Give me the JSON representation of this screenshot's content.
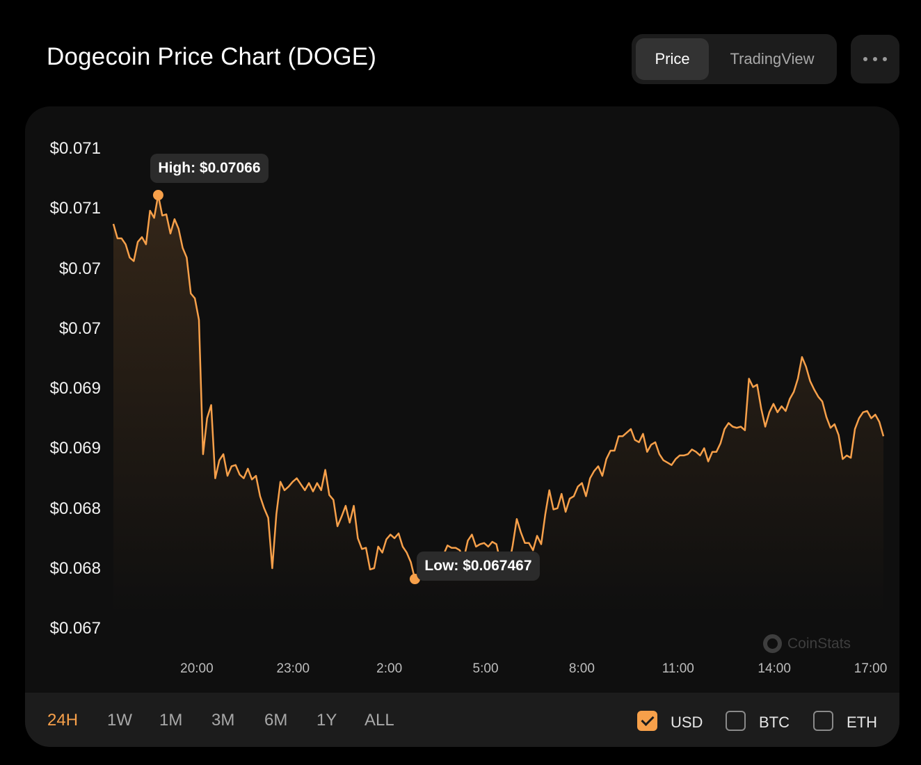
{
  "title": "Dogecoin Price Chart (DOGE)",
  "view_toggle": {
    "price": "Price",
    "tradingview": "TradingView",
    "active": "Price"
  },
  "more_icon": "ellipsis-icon",
  "accent_color": "#f7a04a",
  "watermark": "CoinStats",
  "timeframes": [
    "24H",
    "1W",
    "1M",
    "3M",
    "6M",
    "1Y",
    "ALL"
  ],
  "active_timeframe": "24H",
  "currencies": [
    {
      "label": "USD",
      "checked": true
    },
    {
      "label": "BTC",
      "checked": false
    },
    {
      "label": "ETH",
      "checked": false
    }
  ],
  "chart_data": {
    "type": "area",
    "title": "Dogecoin Price Chart (DOGE)",
    "y_tick_labels": [
      "$0.071",
      "$0.071",
      "$0.07",
      "$0.07",
      "$0.069",
      "$0.069",
      "$0.068",
      "$0.068",
      "$0.067"
    ],
    "x_tick_labels": [
      "20:00",
      "23:00",
      "2:00",
      "5:00",
      "8:00",
      "11:00",
      "14:00",
      "17:00"
    ],
    "ylim": [
      0.06704,
      0.07104
    ],
    "annotations": [
      {
        "label": "High: $0.07066",
        "value": 0.07066
      },
      {
        "label": "Low: $0.067467",
        "value": 0.067467
      }
    ],
    "series": [
      {
        "values": [
          0.07042,
          0.0703,
          0.0703,
          0.07025,
          0.07014,
          0.07011,
          0.07027,
          0.07031,
          0.07025,
          0.07053,
          0.07047,
          0.07066,
          0.07049,
          0.0705,
          0.07034,
          0.07046,
          0.07038,
          0.07022,
          0.07014,
          0.06984,
          0.0698,
          0.06962,
          0.0685,
          0.0688,
          0.06891,
          0.0683,
          0.06845,
          0.0685,
          0.06832,
          0.0684,
          0.06841,
          0.06833,
          0.0683,
          0.06838,
          0.06829,
          0.06832,
          0.06815,
          0.06805,
          0.06797,
          0.06755,
          0.068,
          0.06827,
          0.0682,
          0.06823,
          0.06827,
          0.0683,
          0.06825,
          0.0682,
          0.06826,
          0.06819,
          0.06826,
          0.0682,
          0.06837,
          0.06816,
          0.06812,
          0.0679,
          0.06798,
          0.06807,
          0.06793,
          0.06807,
          0.0678,
          0.06771,
          0.06772,
          0.06754,
          0.06755,
          0.06773,
          0.06768,
          0.06779,
          0.06783,
          0.0678,
          0.06784,
          0.06773,
          0.06768,
          0.0676,
          0.06746,
          0.06747,
          0.06758,
          0.06765,
          0.06764,
          0.06765,
          0.06767,
          0.06766,
          0.06774,
          0.06772,
          0.06772,
          0.0677,
          0.06763,
          0.06778,
          0.06783,
          0.06773,
          0.06775,
          0.06776,
          0.06773,
          0.06777,
          0.06775,
          0.0676,
          0.06763,
          0.06756,
          0.06774,
          0.06796,
          0.06785,
          0.06776,
          0.06776,
          0.0677,
          0.06782,
          0.06775,
          0.068,
          0.0682,
          0.06804,
          0.06805,
          0.06817,
          0.06802,
          0.06813,
          0.06815,
          0.06823,
          0.06826,
          0.06815,
          0.0683,
          0.06836,
          0.0684,
          0.06832,
          0.06846,
          0.06853,
          0.06853,
          0.06865,
          0.06865,
          0.06868,
          0.06871,
          0.06862,
          0.0686,
          0.06867,
          0.06852,
          0.06858,
          0.0686,
          0.0685,
          0.06845,
          0.06843,
          0.06841,
          0.06846,
          0.06849,
          0.06849,
          0.0685,
          0.06854,
          0.06852,
          0.06849,
          0.06855,
          0.06844,
          0.06852,
          0.06852,
          0.06859,
          0.06871,
          0.06876,
          0.06873,
          0.06872,
          0.06873,
          0.0687,
          0.06913,
          0.06906,
          0.06908,
          0.06888,
          0.06873,
          0.06885,
          0.06892,
          0.06885,
          0.0689,
          0.06886,
          0.06896,
          0.06902,
          0.06913,
          0.06931,
          0.06923,
          0.06911,
          0.06904,
          0.06898,
          0.06894,
          0.06881,
          0.06872,
          0.06875,
          0.06866,
          0.06846,
          0.06849,
          0.06847,
          0.06871,
          0.0688,
          0.06885,
          0.06886,
          0.0688,
          0.06883,
          0.06877,
          0.06865
        ]
      }
    ],
    "grid": false,
    "legend": "none"
  }
}
